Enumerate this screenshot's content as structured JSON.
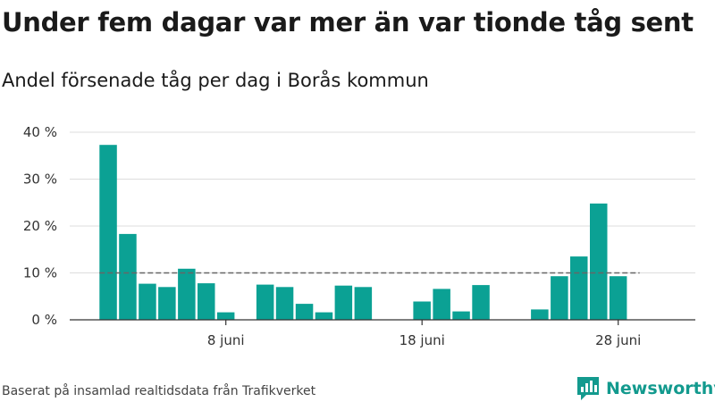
{
  "title": "Under fem dagar var mer än var tionde tåg sent",
  "subtitle": "Andel försenade tåg per dag i Borås kommun",
  "footer": {
    "source": "Baserat på insamlad realtidsdata från Trafikverket",
    "brand": "Newsworthy",
    "brand_icon": "newsworthy-logo-icon"
  },
  "colors": {
    "bar": "#0ba194",
    "grid": "#dddddd",
    "reference": "#666666",
    "axis": "#333333"
  },
  "chart_data": {
    "type": "bar",
    "x": [
      "2 juni",
      "3 juni",
      "4 juni",
      "5 juni",
      "6 juni",
      "7 juni",
      "8 juni",
      "9 juni",
      "10 juni",
      "11 juni",
      "12 juni",
      "13 juni",
      "14 juni",
      "15 juni",
      "16 juni",
      "17 juni",
      "18 juni",
      "19 juni",
      "20 juni",
      "21 juni",
      "22 juni",
      "23 juni",
      "24 juni",
      "25 juni",
      "26 juni",
      "27 juni",
      "28 juni",
      "29 juni"
    ],
    "values": [
      37.3,
      18.3,
      7.7,
      7.0,
      10.9,
      7.8,
      1.6,
      0,
      7.5,
      7.0,
      3.4,
      1.6,
      7.3,
      7.0,
      null,
      null,
      3.9,
      6.6,
      1.8,
      7.4,
      null,
      null,
      2.2,
      9.3,
      13.5,
      24.8,
      9.3,
      null
    ],
    "reference_line": 10,
    "ylim": [
      0,
      40
    ],
    "yticks": [
      0,
      10,
      20,
      30,
      40
    ],
    "ytick_labels": [
      "0 %",
      "10 %",
      "20 %",
      "30 %",
      "40 %"
    ],
    "xtick_labels": [
      {
        "index": 6,
        "label": "8 juni"
      },
      {
        "index": 16,
        "label": "18 juni"
      },
      {
        "index": 26,
        "label": "28 juni"
      }
    ],
    "grid": true,
    "xlabel": "",
    "ylabel": ""
  }
}
